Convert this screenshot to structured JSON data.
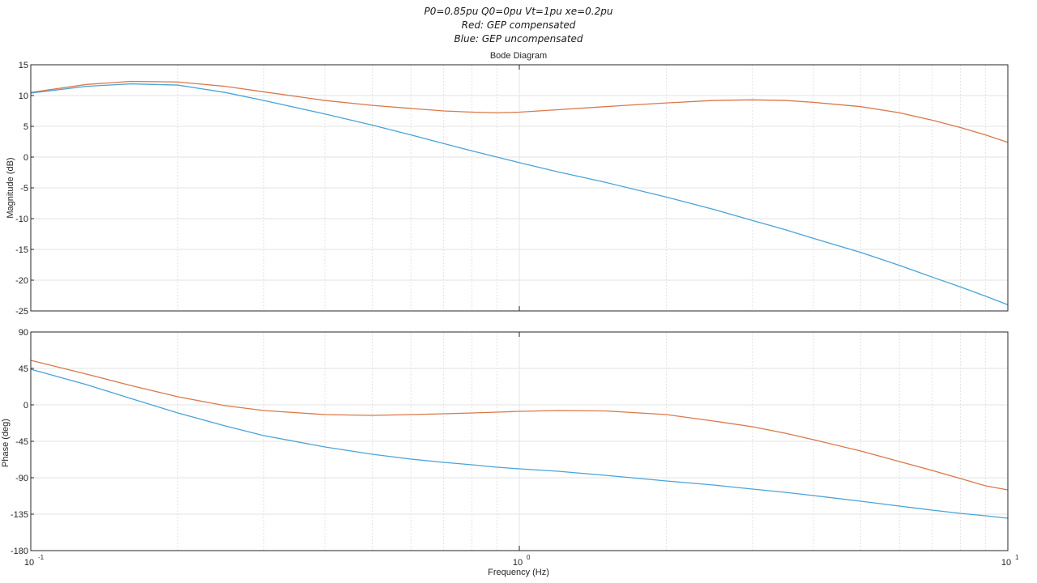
{
  "header": {
    "line1": "P0=0.85pu Q0=0pu Vt=1pu xe=0.2pu",
    "line2": "Red: GEP compensated",
    "line3": "Blue: GEP uncompensated"
  },
  "chart_data": {
    "type": "line",
    "title": "Bode Diagram",
    "xlabel": "Frequency  (Hz)",
    "xscale": "log",
    "xlim": [
      0.1,
      10
    ],
    "x_tick_labels": [
      "10",
      "10"
    ],
    "x_tick_exponents": [
      "-1",
      "0",
      "1"
    ],
    "grid": true,
    "colors": {
      "compensated": "#d9784a",
      "uncompensated": "#4aa3d9"
    },
    "magnitude": {
      "ylabel": "Magnitude (dB)",
      "ylim": [
        -25,
        15
      ],
      "yticks": [
        15,
        10,
        5,
        0,
        -5,
        -10,
        -15,
        -20,
        -25
      ],
      "series": [
        {
          "x": [
            0.1,
            0.13,
            0.16,
            0.2,
            0.25,
            0.3,
            0.4,
            0.5,
            0.6,
            0.7,
            0.8,
            0.9,
            1.0,
            1.2,
            1.5,
            2.0,
            2.5,
            3.0,
            3.5,
            4.0,
            5.0,
            6.0,
            7.0,
            8.0,
            9.0,
            10.0
          ],
          "y": [
            10.5,
            11.8,
            12.3,
            12.2,
            11.5,
            10.6,
            9.2,
            8.4,
            7.9,
            7.5,
            7.3,
            7.2,
            7.3,
            7.7,
            8.2,
            8.8,
            9.2,
            9.3,
            9.2,
            8.9,
            8.2,
            7.2,
            6.0,
            4.8,
            3.6,
            2.4
          ]
        },
        {
          "x": [
            0.1,
            0.13,
            0.16,
            0.2,
            0.25,
            0.3,
            0.4,
            0.5,
            0.6,
            0.7,
            0.8,
            0.9,
            1.0,
            1.2,
            1.5,
            2.0,
            2.5,
            3.0,
            3.5,
            4.0,
            5.0,
            6.0,
            7.0,
            8.0,
            9.0,
            10.0
          ],
          "y": [
            10.4,
            11.5,
            11.9,
            11.7,
            10.5,
            9.2,
            7.0,
            5.2,
            3.6,
            2.2,
            1.0,
            0.0,
            -0.9,
            -2.4,
            -4.1,
            -6.5,
            -8.5,
            -10.3,
            -11.8,
            -13.2,
            -15.5,
            -17.6,
            -19.5,
            -21.1,
            -22.6,
            -24.0
          ]
        }
      ]
    },
    "phase": {
      "ylabel": "Phase (deg)",
      "ylim": [
        -180,
        90
      ],
      "yticks": [
        90,
        45,
        0,
        -45,
        -90,
        -135,
        -180
      ],
      "series": [
        {
          "x": [
            0.1,
            0.13,
            0.16,
            0.2,
            0.25,
            0.3,
            0.4,
            0.5,
            0.6,
            0.7,
            0.8,
            0.9,
            1.0,
            1.2,
            1.5,
            2.0,
            2.5,
            3.0,
            3.5,
            4.0,
            5.0,
            6.0,
            7.0,
            8.0,
            9.0,
            10.0
          ],
          "y": [
            55,
            38,
            24,
            10,
            -1,
            -7,
            -12,
            -13,
            -12,
            -11,
            -10,
            -9,
            -8,
            -7,
            -7.5,
            -12,
            -20,
            -27,
            -35,
            -43,
            -57,
            -70,
            -81,
            -91,
            -100,
            -105
          ]
        },
        {
          "x": [
            0.1,
            0.13,
            0.16,
            0.2,
            0.25,
            0.3,
            0.4,
            0.5,
            0.6,
            0.7,
            0.8,
            0.9,
            1.0,
            1.2,
            1.5,
            2.0,
            2.5,
            3.0,
            3.5,
            4.0,
            5.0,
            6.0,
            7.0,
            8.0,
            9.0,
            10.0
          ],
          "y": [
            44,
            25,
            8,
            -10,
            -26,
            -38,
            -52,
            -61,
            -67,
            -71,
            -74,
            -77,
            -79,
            -82,
            -87,
            -94,
            -99,
            -104,
            -108,
            -112,
            -119,
            -125,
            -130,
            -134,
            -137,
            -140
          ]
        }
      ]
    }
  }
}
